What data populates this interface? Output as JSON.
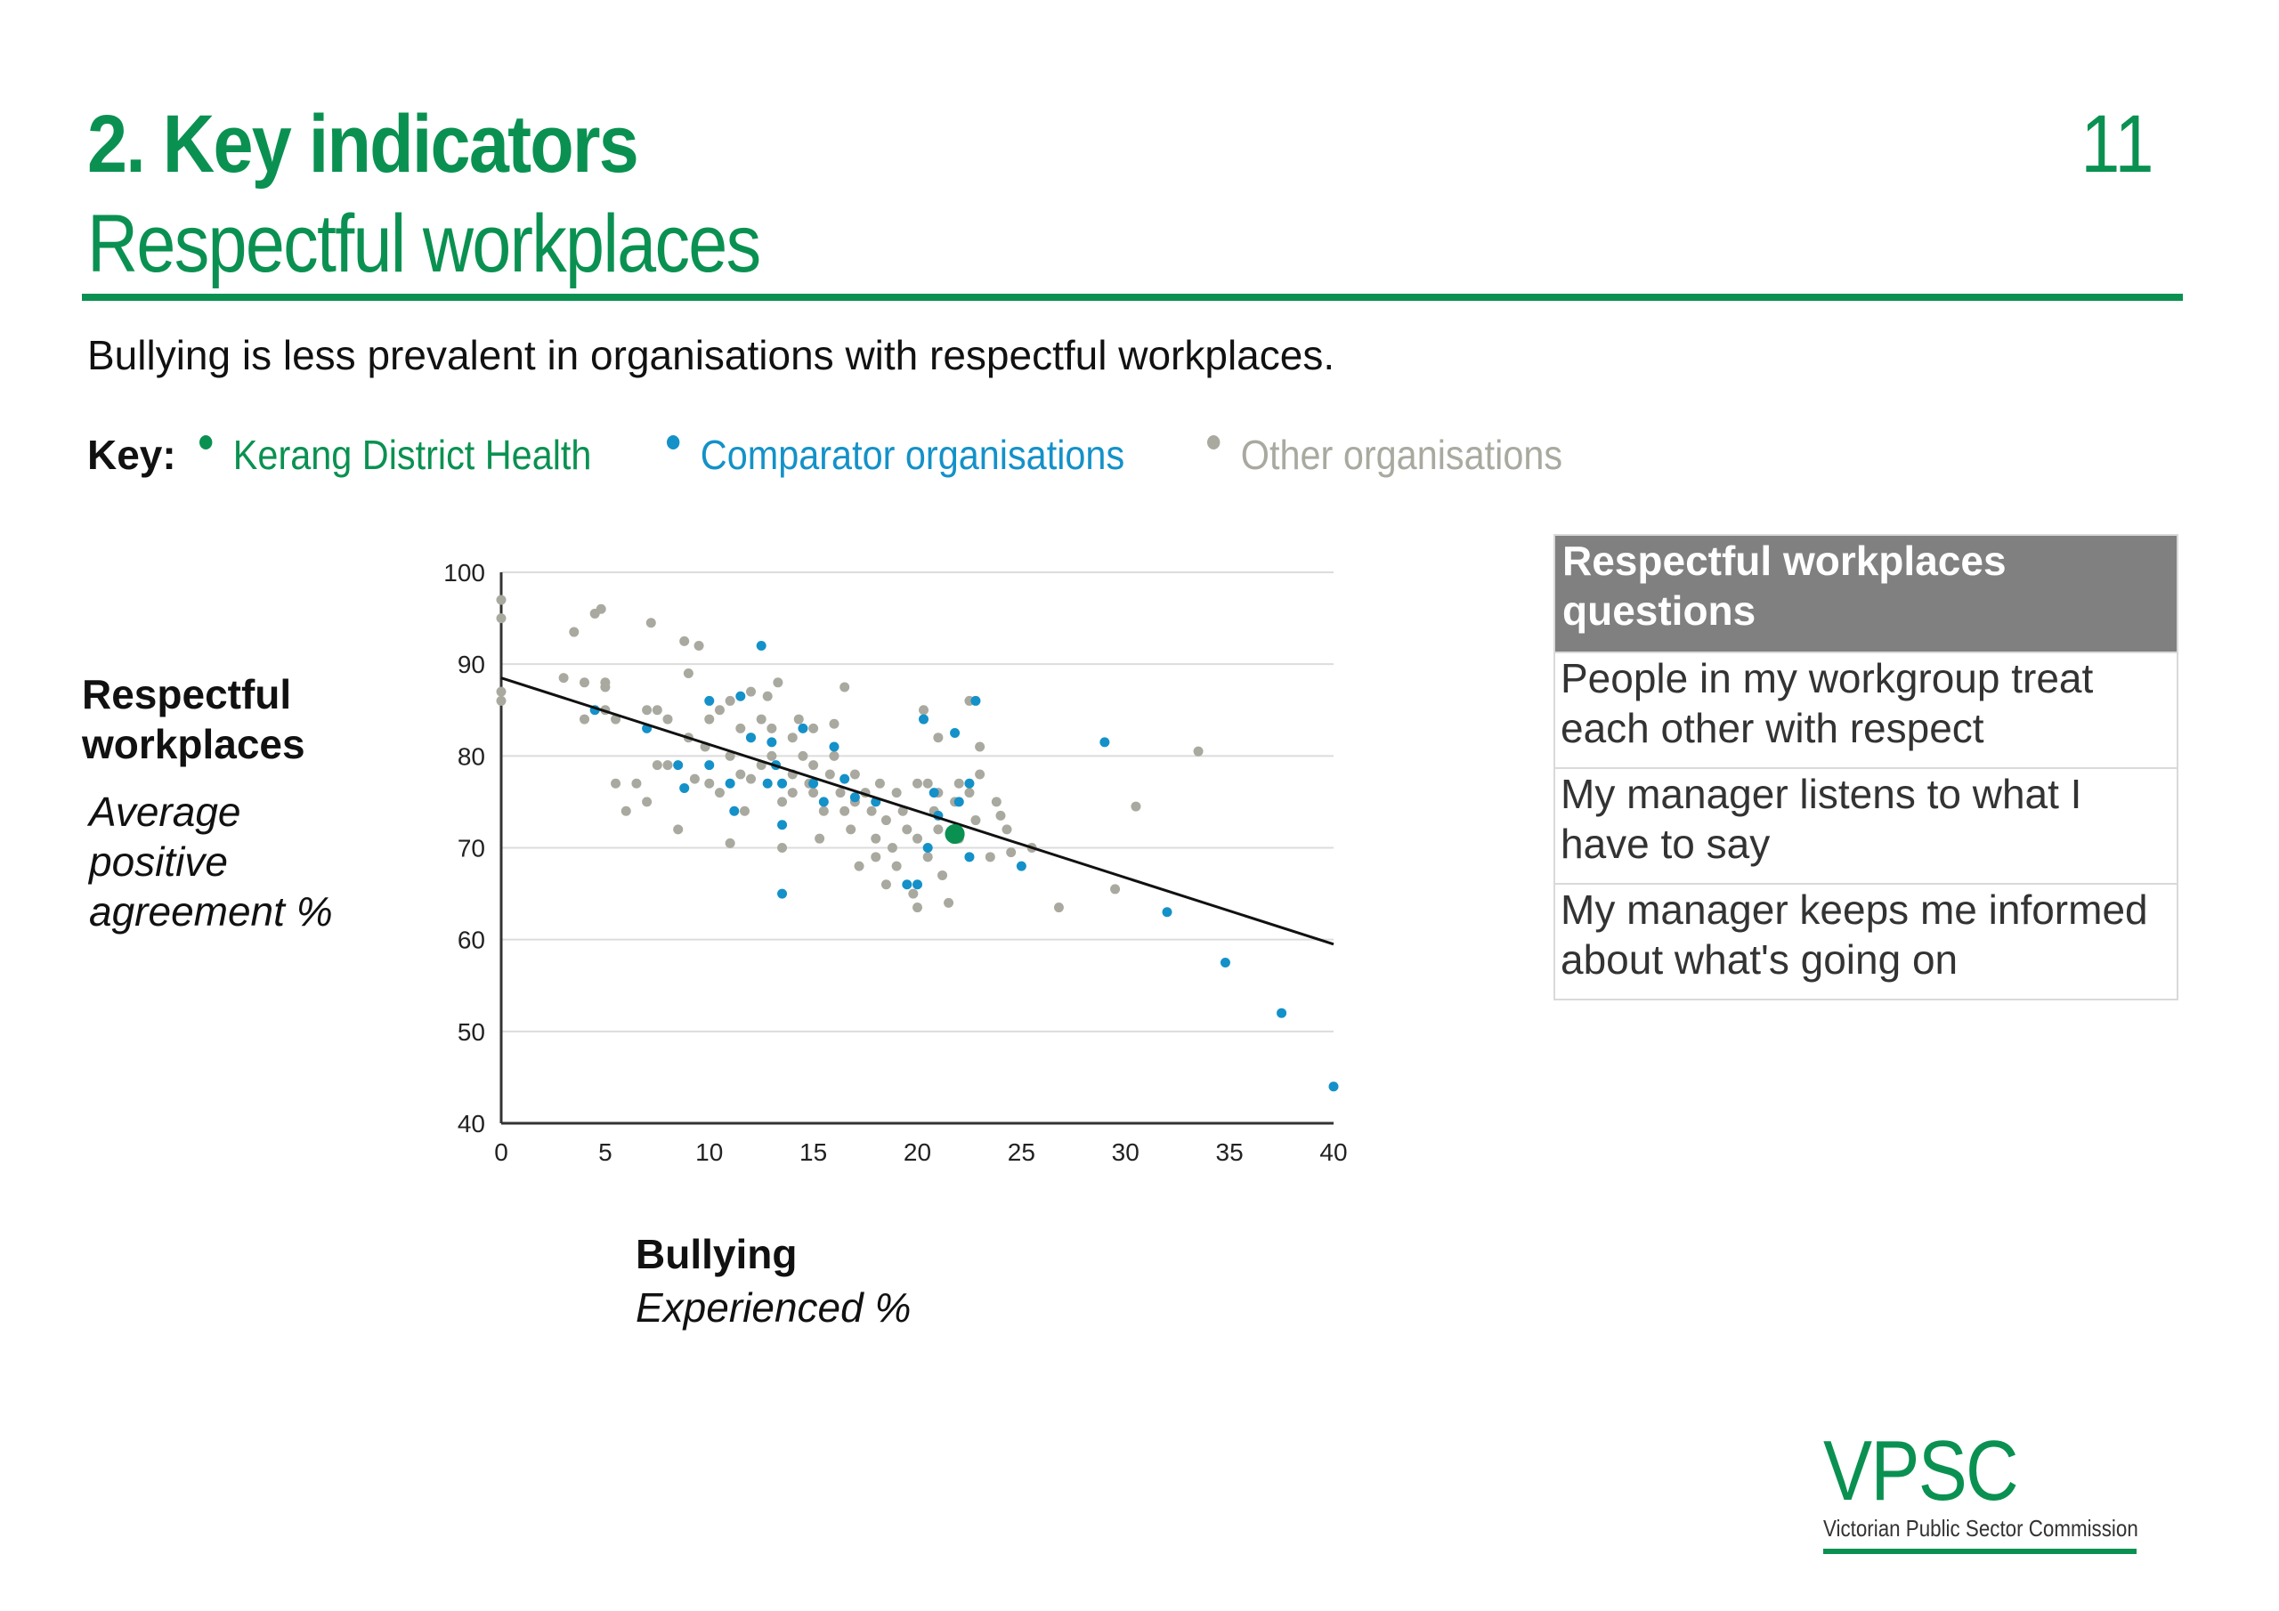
{
  "header": {
    "title": "2. Key indicators",
    "subtitle": "Respectful workplaces",
    "page_number": "11",
    "accent_color": "#0a9151"
  },
  "lead": "Bullying is less prevalent in organisations with respectful workplaces.",
  "key": {
    "label": "Key:",
    "items": [
      {
        "label": "Kerang District Health",
        "color": "#0a9151"
      },
      {
        "label": "Comparator organisations",
        "color": "#1491c8"
      },
      {
        "label": "Other organisations",
        "color": "#a9a9a0"
      }
    ]
  },
  "y_axis_label": {
    "title": "Respectful workplaces",
    "subtitle": "Average positive agreement %"
  },
  "x_axis_label": {
    "title": "Bullying",
    "subtitle": "Experienced %"
  },
  "questions": {
    "header": "Respectful workplaces questions",
    "items": [
      "People in my workgroup treat each other with respect",
      "My manager listens to what I have to say",
      "My manager keeps me informed about what's going on"
    ]
  },
  "logo": {
    "text": "VPSC",
    "sub": "Victorian Public Sector Commission"
  },
  "chart_data": {
    "type": "scatter",
    "xlim": [
      0,
      40
    ],
    "ylim": [
      40,
      100
    ],
    "xticks": [
      0,
      5,
      10,
      15,
      20,
      25,
      30,
      35,
      40
    ],
    "yticks": [
      40,
      50,
      60,
      70,
      80,
      90,
      100
    ],
    "grid": true,
    "legend": "top",
    "trendline": {
      "x": [
        0,
        40
      ],
      "y": [
        88.5,
        59.5
      ]
    },
    "series": [
      {
        "name": "Other organisations",
        "color": "#a9a9a0",
        "points": [
          [
            0,
            97
          ],
          [
            0,
            95
          ],
          [
            0,
            87
          ],
          [
            0,
            86
          ],
          [
            3,
            88.5
          ],
          [
            3.5,
            93.5
          ],
          [
            4,
            88
          ],
          [
            4,
            84
          ],
          [
            4.5,
            95.5
          ],
          [
            4.8,
            96
          ],
          [
            5,
            88
          ],
          [
            5,
            87.5
          ],
          [
            5,
            85
          ],
          [
            5.5,
            84
          ],
          [
            5.5,
            77
          ],
          [
            6,
            74
          ],
          [
            6.5,
            77
          ],
          [
            7,
            85
          ],
          [
            7,
            75
          ],
          [
            7.2,
            94.5
          ],
          [
            7.5,
            85
          ],
          [
            7.5,
            79
          ],
          [
            8,
            84
          ],
          [
            8,
            79
          ],
          [
            8.5,
            72
          ],
          [
            8.8,
            92.5
          ],
          [
            9,
            89
          ],
          [
            9,
            82
          ],
          [
            9.3,
            77.5
          ],
          [
            9.5,
            92
          ],
          [
            9.8,
            81
          ],
          [
            10,
            84
          ],
          [
            10,
            77
          ],
          [
            10.5,
            85
          ],
          [
            10.5,
            76
          ],
          [
            11,
            86
          ],
          [
            11,
            80
          ],
          [
            11,
            70.5
          ],
          [
            11.5,
            83
          ],
          [
            11.5,
            78
          ],
          [
            11.7,
            74
          ],
          [
            12,
            87
          ],
          [
            12,
            82
          ],
          [
            12,
            77.5
          ],
          [
            12.5,
            84
          ],
          [
            12.5,
            79
          ],
          [
            12.8,
            86.5
          ],
          [
            13,
            83
          ],
          [
            13,
            80
          ],
          [
            13.3,
            88
          ],
          [
            13.5,
            75
          ],
          [
            13.5,
            70
          ],
          [
            14,
            82
          ],
          [
            14,
            78
          ],
          [
            14,
            76
          ],
          [
            14.3,
            84
          ],
          [
            14.5,
            80
          ],
          [
            14.8,
            77
          ],
          [
            15,
            83
          ],
          [
            15,
            79
          ],
          [
            15,
            76
          ],
          [
            15.3,
            71
          ],
          [
            15.5,
            74
          ],
          [
            15.8,
            78
          ],
          [
            16,
            83.5
          ],
          [
            16,
            80
          ],
          [
            16.3,
            76
          ],
          [
            16.5,
            87.5
          ],
          [
            16.5,
            74
          ],
          [
            16.8,
            72
          ],
          [
            17,
            78
          ],
          [
            17,
            75
          ],
          [
            17.2,
            68
          ],
          [
            17.5,
            76
          ],
          [
            17.8,
            74
          ],
          [
            18,
            71
          ],
          [
            18,
            69
          ],
          [
            18.2,
            77
          ],
          [
            18.5,
            73
          ],
          [
            18.5,
            66
          ],
          [
            18.8,
            70
          ],
          [
            19,
            76
          ],
          [
            19,
            68
          ],
          [
            19.3,
            74
          ],
          [
            19.5,
            72
          ],
          [
            19.8,
            65
          ],
          [
            20,
            77
          ],
          [
            20,
            71
          ],
          [
            20,
            63.5
          ],
          [
            20.3,
            85
          ],
          [
            20.5,
            77
          ],
          [
            20.5,
            69
          ],
          [
            20.8,
            74
          ],
          [
            21,
            82
          ],
          [
            21,
            76
          ],
          [
            21,
            72
          ],
          [
            21.2,
            67
          ],
          [
            21.5,
            64
          ],
          [
            21.8,
            75
          ],
          [
            22,
            77
          ],
          [
            22,
            71
          ],
          [
            22.5,
            86
          ],
          [
            22.5,
            76
          ],
          [
            22.8,
            73
          ],
          [
            23,
            81
          ],
          [
            23,
            78
          ],
          [
            23.5,
            69
          ],
          [
            23.8,
            75
          ],
          [
            24,
            73.5
          ],
          [
            24.3,
            72
          ],
          [
            24.5,
            69.5
          ],
          [
            25.5,
            70
          ],
          [
            26.8,
            63.5
          ],
          [
            29.5,
            65.5
          ],
          [
            30.5,
            74.5
          ],
          [
            33.5,
            80.5
          ]
        ]
      },
      {
        "name": "Comparator organisations",
        "color": "#1491c8",
        "points": [
          [
            4.5,
            85
          ],
          [
            7,
            83
          ],
          [
            8.5,
            79
          ],
          [
            8.8,
            76.5
          ],
          [
            10,
            79
          ],
          [
            10,
            86
          ],
          [
            11,
            77
          ],
          [
            11.2,
            74
          ],
          [
            11.5,
            86.5
          ],
          [
            12,
            82
          ],
          [
            12.5,
            92
          ],
          [
            12.8,
            77
          ],
          [
            13,
            81.5
          ],
          [
            13.2,
            79
          ],
          [
            13.5,
            77
          ],
          [
            13.5,
            72.5
          ],
          [
            13.5,
            65
          ],
          [
            14.5,
            83
          ],
          [
            15,
            77
          ],
          [
            15.5,
            75
          ],
          [
            16,
            81
          ],
          [
            16.5,
            77.5
          ],
          [
            17,
            75.5
          ],
          [
            18,
            75
          ],
          [
            19.5,
            66
          ],
          [
            20,
            66
          ],
          [
            20.3,
            84
          ],
          [
            20.5,
            70
          ],
          [
            20.8,
            76
          ],
          [
            21,
            73.5
          ],
          [
            21.8,
            82.5
          ],
          [
            22,
            75
          ],
          [
            22.5,
            77
          ],
          [
            22.8,
            86
          ],
          [
            22.5,
            69
          ],
          [
            25,
            68
          ],
          [
            29,
            81.5
          ],
          [
            32,
            63
          ],
          [
            34.8,
            57.5
          ],
          [
            37.5,
            52
          ],
          [
            40,
            44
          ]
        ]
      },
      {
        "name": "Kerang District Health",
        "color": "#0a9151",
        "points": [
          [
            21.8,
            71.5
          ]
        ]
      }
    ]
  }
}
